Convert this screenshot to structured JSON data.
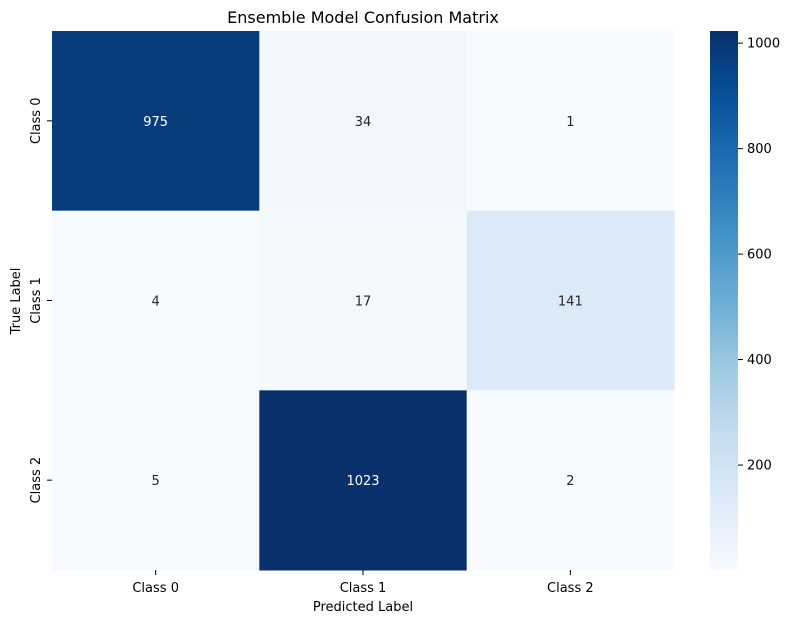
{
  "chart_data": {
    "type": "heatmap",
    "title": "Ensemble Model Confusion Matrix",
    "xlabel": "Predicted Label",
    "ylabel": "True Label",
    "x_categories": [
      "Class 0",
      "Class 1",
      "Class 2"
    ],
    "y_categories": [
      "Class 0",
      "Class 1",
      "Class 2"
    ],
    "values": [
      [
        975,
        34,
        1
      ],
      [
        4,
        17,
        141
      ],
      [
        5,
        1023,
        2
      ]
    ],
    "colormap": "Blues",
    "vmin": 1,
    "vmax": 1023,
    "colorbar_ticks": [
      200,
      400,
      600,
      800,
      1000
    ]
  }
}
